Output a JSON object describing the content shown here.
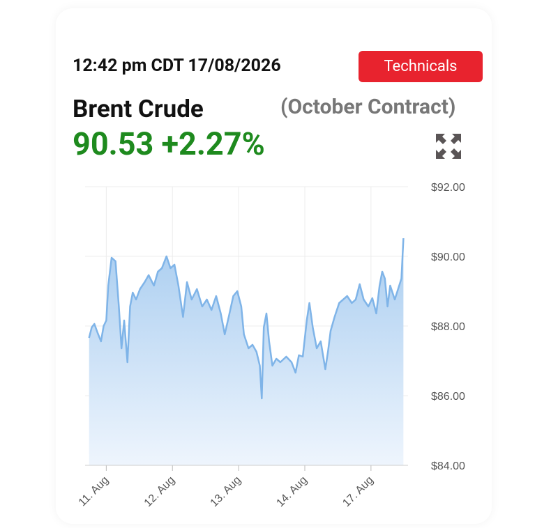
{
  "header": {
    "time": "12:42 pm CDT 17/08/2026",
    "button": "Technicals"
  },
  "instrument": {
    "name": "Brent Crude",
    "contract": "(October Contract)",
    "price": "90.53",
    "change": "+2.27%"
  },
  "chart_data": {
    "type": "area",
    "color": "#7fb4e8",
    "x": [
      -0.26,
      -0.22,
      -0.18,
      -0.13,
      -0.08,
      -0.04,
      0,
      0.03,
      0.08,
      0.14,
      0.19,
      0.23,
      0.27,
      0.32,
      0.36,
      0.4,
      0.45,
      0.51,
      0.58,
      0.64,
      0.72,
      0.78,
      0.84,
      0.91,
      0.97,
      1.03,
      1.09,
      1.16,
      1.22,
      1.29,
      1.37,
      1.45,
      1.52,
      1.59,
      1.66,
      1.73,
      1.79,
      1.85,
      1.92,
      1.98,
      2.04,
      2.08,
      2.15,
      2.21,
      2.27,
      2.32,
      2.35,
      2.38,
      2.42,
      2.46,
      2.51,
      2.57,
      2.63,
      2.72,
      2.8,
      2.86,
      2.91,
      2.97,
      3.03,
      3.07,
      3.12,
      3.18,
      3.24,
      3.31,
      3.35,
      3.39,
      3.45,
      3.52,
      3.58,
      3.64,
      3.71,
      3.77,
      3.83,
      3.89,
      3.96,
      4.02,
      4.08,
      4.13,
      4.17,
      4.21,
      4.25,
      4.29,
      4.36,
      4.42,
      4.46,
      4.49
    ],
    "values": [
      87.66,
      87.96,
      88.06,
      87.8,
      87.56,
      88.0,
      88.16,
      89.16,
      89.96,
      89.86,
      88.56,
      87.36,
      88.16,
      86.96,
      88.56,
      88.96,
      88.76,
      89.06,
      89.26,
      89.46,
      89.16,
      89.56,
      89.66,
      90.0,
      89.66,
      89.76,
      89.16,
      88.26,
      89.26,
      88.76,
      89.06,
      88.56,
      88.76,
      88.46,
      88.86,
      88.36,
      87.76,
      88.26,
      88.86,
      89.0,
      88.56,
      87.76,
      87.36,
      87.46,
      87.26,
      86.86,
      85.92,
      87.96,
      88.36,
      87.56,
      86.86,
      87.06,
      86.96,
      87.12,
      86.96,
      86.66,
      87.16,
      87.12,
      88.16,
      88.66,
      87.96,
      87.36,
      87.56,
      86.76,
      87.26,
      87.86,
      88.26,
      88.66,
      88.76,
      88.86,
      88.66,
      88.76,
      89.2,
      88.76,
      88.56,
      88.8,
      88.36,
      89.16,
      89.56,
      89.36,
      88.56,
      89.16,
      88.76,
      89.12,
      89.36,
      90.52
    ],
    "xlim": [
      -0.32,
      4.56
    ],
    "xticks": [
      {
        "value": 0,
        "label": "11. Aug"
      },
      {
        "value": 1,
        "label": "12. Aug"
      },
      {
        "value": 2,
        "label": "13. Aug"
      },
      {
        "value": 3,
        "label": "14. Aug"
      },
      {
        "value": 4,
        "label": "17. Aug"
      }
    ],
    "ylim": [
      84,
      92
    ],
    "yticks": [
      {
        "value": 84,
        "label": "$84.00"
      },
      {
        "value": 86,
        "label": "$86.00"
      },
      {
        "value": 88,
        "label": "$88.00"
      },
      {
        "value": 90,
        "label": "$90.00"
      },
      {
        "value": 92,
        "label": "$92.00"
      }
    ],
    "grid": true
  }
}
